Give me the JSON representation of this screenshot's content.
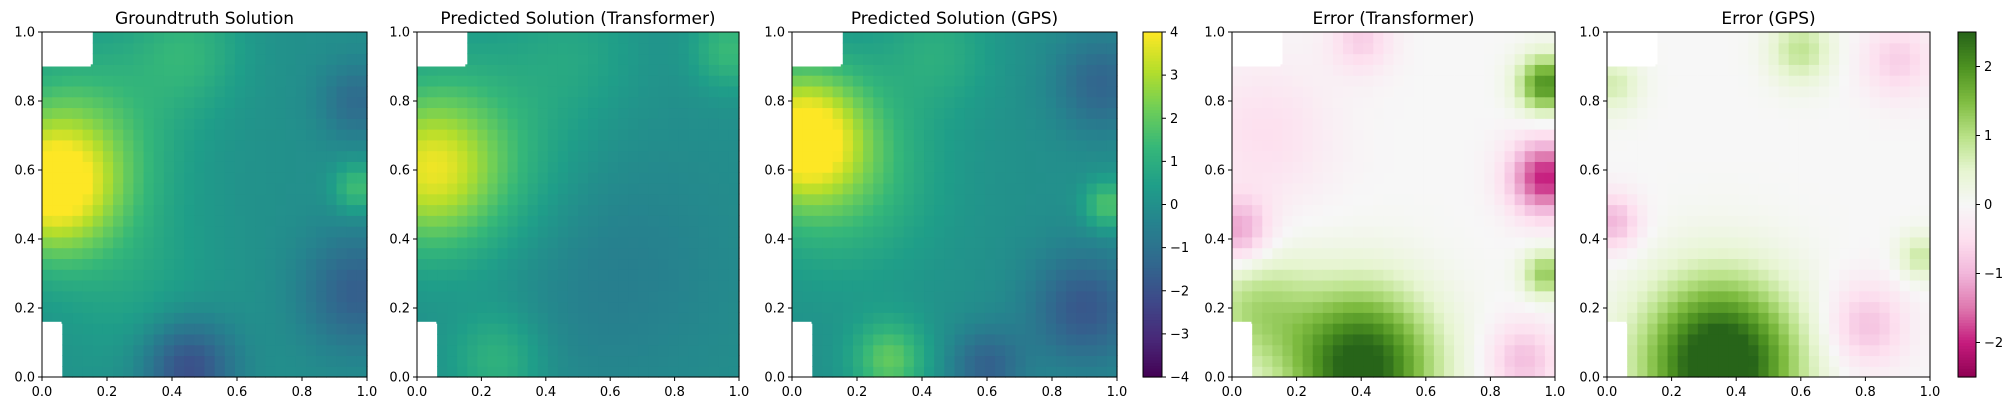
{
  "colors": {
    "viridis": [
      "#440154",
      "#482878",
      "#3e4989",
      "#31688e",
      "#26828e",
      "#1f9e89",
      "#35b779",
      "#6ece58",
      "#b5de2b",
      "#fde725"
    ],
    "piyg": [
      "#8e0152",
      "#c51b7d",
      "#de77ae",
      "#f1b6da",
      "#fde0ef",
      "#f7f7f7",
      "#e6f5d0",
      "#b8e186",
      "#7fbc41",
      "#4d9221",
      "#276419"
    ],
    "axis": "#000000",
    "text": "#000000"
  },
  "chart_data": [
    {
      "type": "heatmap",
      "title": "Groundtruth Solution",
      "xlabel": "",
      "ylabel": "",
      "xlim": [
        0,
        1
      ],
      "ylim": [
        0,
        1
      ],
      "xticks": [
        "0.0",
        "0.2",
        "0.4",
        "0.6",
        "0.8",
        "1.0"
      ],
      "yticks": [
        "0.0",
        "0.2",
        "0.4",
        "0.6",
        "0.8",
        "1.0"
      ],
      "colormap": "viridis",
      "vmin": -4,
      "vmax": 4,
      "grid": [
        32,
        32
      ],
      "masked_regions": [
        [
          0.0,
          0.9,
          0.15,
          1.0
        ],
        [
          0.0,
          0.0,
          0.06,
          0.16
        ]
      ],
      "features": [
        {
          "x": 0.03,
          "y": 0.55,
          "value": 3.8,
          "radius": 0.14
        },
        {
          "x": 0.14,
          "y": 0.7,
          "value": 1.5,
          "radius": 0.2
        },
        {
          "x": 0.45,
          "y": 0.95,
          "value": 1.1,
          "radius": 0.12
        },
        {
          "x": 0.45,
          "y": 0.03,
          "value": -2.2,
          "radius": 0.1
        },
        {
          "x": 0.97,
          "y": 0.25,
          "value": -1.6,
          "radius": 0.12
        },
        {
          "x": 0.97,
          "y": 0.8,
          "value": -1.2,
          "radius": 0.08
        },
        {
          "x": 0.97,
          "y": 0.55,
          "value": 1.6,
          "radius": 0.05
        },
        {
          "x": 0.3,
          "y": 0.25,
          "value": 0.6,
          "radius": 0.18
        }
      ]
    },
    {
      "type": "heatmap",
      "title": "Predicted Solution (Transformer)",
      "xlabel": "",
      "ylabel": "",
      "xlim": [
        0,
        1
      ],
      "ylim": [
        0,
        1
      ],
      "xticks": [
        "0.0",
        "0.2",
        "0.4",
        "0.6",
        "0.8",
        "1.0"
      ],
      "yticks": [
        "0.0",
        "0.2",
        "0.4",
        "0.6",
        "0.8",
        "1.0"
      ],
      "colormap": "viridis",
      "vmin": -4,
      "vmax": 4,
      "grid": [
        32,
        32
      ],
      "masked_regions": [
        [
          0.0,
          0.9,
          0.15,
          1.0
        ],
        [
          0.0,
          0.0,
          0.06,
          0.16
        ]
      ],
      "features": [
        {
          "x": 0.03,
          "y": 0.6,
          "value": 2.8,
          "radius": 0.15
        },
        {
          "x": 0.18,
          "y": 0.65,
          "value": 1.3,
          "radius": 0.22
        },
        {
          "x": 0.5,
          "y": 0.95,
          "value": 0.6,
          "radius": 0.14
        },
        {
          "x": 0.97,
          "y": 0.95,
          "value": 1.4,
          "radius": 0.08
        },
        {
          "x": 0.25,
          "y": 0.05,
          "value": 1.2,
          "radius": 0.1
        },
        {
          "x": 0.6,
          "y": 0.3,
          "value": -0.6,
          "radius": 0.25
        }
      ]
    },
    {
      "type": "heatmap",
      "title": "Predicted Solution (GPS)",
      "xlabel": "",
      "ylabel": "",
      "xlim": [
        0,
        1
      ],
      "ylim": [
        0,
        1
      ],
      "xticks": [
        "0.0",
        "0.2",
        "0.4",
        "0.6",
        "0.8",
        "1.0"
      ],
      "yticks": [
        "0.0",
        "0.2",
        "0.4",
        "0.6",
        "0.8",
        "1.0"
      ],
      "colormap": "viridis",
      "vmin": -4,
      "vmax": 4,
      "grid": [
        32,
        32
      ],
      "masked_regions": [
        [
          0.0,
          0.9,
          0.15,
          1.0
        ],
        [
          0.0,
          0.0,
          0.06,
          0.16
        ]
      ],
      "features": [
        {
          "x": 0.03,
          "y": 0.7,
          "value": 3.8,
          "radius": 0.13
        },
        {
          "x": 0.15,
          "y": 0.6,
          "value": 1.6,
          "radius": 0.2
        },
        {
          "x": 0.3,
          "y": 0.05,
          "value": 2.0,
          "radius": 0.08
        },
        {
          "x": 0.6,
          "y": 0.03,
          "value": -1.5,
          "radius": 0.08
        },
        {
          "x": 0.9,
          "y": 0.2,
          "value": -1.8,
          "radius": 0.12
        },
        {
          "x": 0.95,
          "y": 0.85,
          "value": -1.4,
          "radius": 0.1
        },
        {
          "x": 0.97,
          "y": 0.5,
          "value": 1.8,
          "radius": 0.05
        },
        {
          "x": 0.45,
          "y": 0.95,
          "value": 0.9,
          "radius": 0.12
        }
      ]
    },
    {
      "type": "heatmap",
      "title": "Error (Transformer)",
      "xlabel": "",
      "ylabel": "",
      "xlim": [
        0,
        1
      ],
      "ylim": [
        0,
        1
      ],
      "xticks": [
        "0.0",
        "0.2",
        "0.4",
        "0.6",
        "0.8",
        "1.0"
      ],
      "yticks": [
        "0.0",
        "0.2",
        "0.4",
        "0.6",
        "0.8",
        "1.0"
      ],
      "colormap": "PiYG",
      "vmin": -2.5,
      "vmax": 2.5,
      "grid": [
        32,
        32
      ],
      "masked_regions": [
        [
          0.0,
          0.9,
          0.15,
          1.0
        ],
        [
          0.0,
          0.0,
          0.06,
          0.16
        ]
      ],
      "features": [
        {
          "x": 0.4,
          "y": 0.03,
          "value": 2.7,
          "radius": 0.16
        },
        {
          "x": 0.97,
          "y": 0.85,
          "value": 2.0,
          "radius": 0.06
        },
        {
          "x": 0.97,
          "y": 0.3,
          "value": 1.3,
          "radius": 0.05
        },
        {
          "x": 0.07,
          "y": 0.2,
          "value": 1.0,
          "radius": 0.12
        },
        {
          "x": 0.97,
          "y": 0.58,
          "value": -2.0,
          "radius": 0.08
        },
        {
          "x": 0.02,
          "y": 0.42,
          "value": -1.2,
          "radius": 0.07
        },
        {
          "x": 0.9,
          "y": 0.05,
          "value": -0.9,
          "radius": 0.08
        },
        {
          "x": 0.4,
          "y": 0.98,
          "value": -0.7,
          "radius": 0.07
        },
        {
          "x": 0.1,
          "y": 0.7,
          "value": -0.5,
          "radius": 0.15
        }
      ]
    },
    {
      "type": "heatmap",
      "title": "Error (GPS)",
      "xlabel": "",
      "ylabel": "",
      "xlim": [
        0,
        1
      ],
      "ylim": [
        0,
        1
      ],
      "xticks": [
        "0.0",
        "0.2",
        "0.4",
        "0.6",
        "0.8",
        "1.0"
      ],
      "yticks": [
        "0.0",
        "0.2",
        "0.4",
        "0.6",
        "0.8",
        "1.0"
      ],
      "colormap": "PiYG",
      "vmin": -2.5,
      "vmax": 2.5,
      "grid": [
        32,
        32
      ],
      "masked_regions": [
        [
          0.0,
          0.9,
          0.15,
          1.0
        ],
        [
          0.0,
          0.0,
          0.06,
          0.16
        ]
      ],
      "features": [
        {
          "x": 0.35,
          "y": 0.04,
          "value": 3.0,
          "radius": 0.17
        },
        {
          "x": 0.6,
          "y": 0.95,
          "value": 0.9,
          "radius": 0.07
        },
        {
          "x": 0.97,
          "y": 0.35,
          "value": 0.8,
          "radius": 0.05
        },
        {
          "x": 0.02,
          "y": 0.45,
          "value": -1.0,
          "radius": 0.06
        },
        {
          "x": 0.8,
          "y": 0.15,
          "value": -0.9,
          "radius": 0.09
        },
        {
          "x": 0.9,
          "y": 0.92,
          "value": -0.7,
          "radius": 0.08
        },
        {
          "x": 0.02,
          "y": 0.85,
          "value": 0.7,
          "radius": 0.06
        }
      ]
    }
  ],
  "colorbars": [
    {
      "colormap": "viridis",
      "vmin": -4,
      "vmax": 4,
      "ticks": [
        {
          "value": 4,
          "label": "4"
        },
        {
          "value": 3,
          "label": "3"
        },
        {
          "value": 2,
          "label": "2"
        },
        {
          "value": 1,
          "label": "1"
        },
        {
          "value": 0,
          "label": "0"
        },
        {
          "value": -1,
          "label": "−1"
        },
        {
          "value": -2,
          "label": "−2"
        },
        {
          "value": -3,
          "label": "−3"
        },
        {
          "value": -4,
          "label": "−4"
        }
      ]
    },
    {
      "colormap": "PiYG",
      "vmin": -2.5,
      "vmax": 2.5,
      "ticks": [
        {
          "value": 2,
          "label": "2"
        },
        {
          "value": 1,
          "label": "1"
        },
        {
          "value": 0,
          "label": "0"
        },
        {
          "value": -1,
          "label": "−1"
        },
        {
          "value": -2,
          "label": "−2"
        }
      ]
    }
  ]
}
